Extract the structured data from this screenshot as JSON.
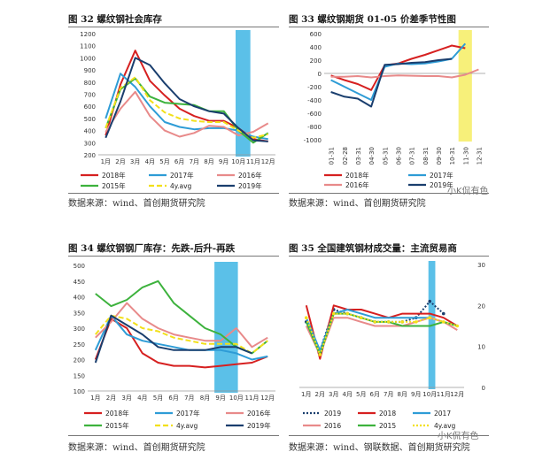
{
  "panels": {
    "p32": {
      "title": "图 32 螺纹钢社会库存",
      "source": "数据来源：wind、首创期货研究院"
    },
    "p33": {
      "title": "图 33 螺纹钢期货 01-05 价差季节性图",
      "source": "数据来源：wind、首创期货研究院"
    },
    "p34": {
      "title": "图 34 螺纹钢钢厂库存：先跌-后升-再跌",
      "source": "数据来源：wind、首创期货研究院"
    },
    "p35": {
      "title": "图 35 全国建筑钢材成交量：主流贸易商",
      "source": "数据来源：wind、钢联数据、首创期货研究院"
    }
  },
  "watermark": "小K侃有色",
  "chart_data": [
    {
      "id": "c32",
      "type": "line",
      "x_labels": [
        "1月",
        "2月",
        "3月",
        "4月",
        "5月",
        "6月",
        "7月",
        "8月",
        "9月",
        "10月",
        "11月",
        "12月"
      ],
      "ylim": [
        200,
        1200
      ],
      "y_ticks": [
        200,
        300,
        400,
        500,
        600,
        700,
        800,
        900,
        1000,
        1100,
        1200
      ],
      "highlight": {
        "from": 9.3,
        "to": 10.3,
        "color": "#5bc0e8"
      },
      "legend": [
        "2018年",
        "2017年",
        "2016年",
        "2015年",
        "4y.avg",
        "2019年"
      ],
      "series": [
        {
          "name": "2018年",
          "color": "#d62020",
          "dash": "",
          "values": [
            360,
            780,
            1060,
            810,
            690,
            580,
            520,
            480,
            480,
            420,
            330,
            310
          ]
        },
        {
          "name": "2017年",
          "color": "#2e9cd6",
          "dash": "",
          "values": [
            500,
            870,
            760,
            600,
            470,
            430,
            410,
            420,
            420,
            400,
            350,
            330
          ]
        },
        {
          "name": "2016年",
          "color": "#e88a8a",
          "dash": "",
          "values": [
            390,
            580,
            720,
            520,
            400,
            350,
            380,
            440,
            430,
            360,
            390,
            460
          ]
        },
        {
          "name": "2015年",
          "color": "#3db23d",
          "dash": "",
          "values": [
            420,
            740,
            830,
            680,
            630,
            620,
            610,
            560,
            560,
            400,
            300,
            380
          ]
        },
        {
          "name": "4y.avg",
          "color": "#f2e01a",
          "dash": "6,3",
          "values": [
            420,
            750,
            840,
            650,
            550,
            500,
            480,
            470,
            470,
            400,
            340,
            370
          ]
        },
        {
          "name": "2019年",
          "color": "#1a3e6e",
          "dash": "",
          "values": [
            340,
            640,
            1000,
            940,
            790,
            660,
            600,
            560,
            540,
            420,
            320,
            310
          ]
        }
      ]
    },
    {
      "id": "c33",
      "type": "line",
      "x_labels": [
        "01-31",
        "02-28",
        "03-31",
        "04-30",
        "05-31",
        "06-30",
        "07-31",
        "08-31",
        "09-30",
        "10-31",
        "11-30",
        "12-31"
      ],
      "ylim": [
        -1000,
        600
      ],
      "y_ticks": [
        -1000,
        -800,
        -600,
        -400,
        -200,
        0,
        200,
        400,
        600
      ],
      "highlight": {
        "from": 10.0,
        "to": 11.0,
        "color": "#f7f07a"
      },
      "legend": [
        "2018年",
        "2017年",
        "2016年",
        "2019年"
      ],
      "series": [
        {
          "name": "2018年",
          "color": "#d62020",
          "dash": "",
          "values": [
            -30,
            -100,
            -160,
            -250,
            120,
            150,
            220,
            280,
            350,
            420,
            380,
            null
          ]
        },
        {
          "name": "2017年",
          "color": "#2e9cd6",
          "dash": "",
          "values": [
            -100,
            -200,
            -300,
            -400,
            100,
            150,
            140,
            150,
            180,
            220,
            450,
            null
          ]
        },
        {
          "name": "2016年",
          "color": "#e88a8a",
          "dash": "",
          "values": [
            -50,
            -50,
            -40,
            -60,
            -40,
            -30,
            -35,
            -40,
            -40,
            -60,
            -20,
            60
          ]
        },
        {
          "name": "2019年",
          "color": "#1a3e6e",
          "dash": "",
          "values": [
            -280,
            -350,
            -380,
            -500,
            130,
            140,
            160,
            170,
            200,
            220,
            null,
            null
          ]
        }
      ]
    },
    {
      "id": "c34",
      "type": "line",
      "x_labels": [
        "1月",
        "2月",
        "3月",
        "4月",
        "5月",
        "6月",
        "7月",
        "8月",
        "9月",
        "10月",
        "11月",
        "12月"
      ],
      "ylim": [
        100,
        500
      ],
      "y_ticks": [
        100,
        150,
        200,
        250,
        300,
        350,
        400,
        450,
        500
      ],
      "highlight": {
        "from": 8.1,
        "to": 9.6,
        "color": "#5bc0e8"
      },
      "legend": [
        "2018年",
        "2017年",
        "2016年",
        "2015年",
        "4y.avg",
        "2019年"
      ],
      "series": [
        {
          "name": "2018年",
          "color": "#d62020",
          "dash": "",
          "values": [
            200,
            330,
            300,
            220,
            190,
            180,
            180,
            175,
            180,
            185,
            190,
            210
          ]
        },
        {
          "name": "2017年",
          "color": "#2e9cd6",
          "dash": "",
          "values": [
            230,
            340,
            280,
            260,
            250,
            240,
            230,
            230,
            230,
            220,
            200,
            210
          ]
        },
        {
          "name": "2016年",
          "color": "#e88a8a",
          "dash": "",
          "values": [
            270,
            320,
            380,
            330,
            300,
            280,
            270,
            260,
            260,
            300,
            240,
            270
          ]
        },
        {
          "name": "2015年",
          "color": "#3db23d",
          "dash": "",
          "values": [
            410,
            370,
            390,
            430,
            450,
            380,
            340,
            300,
            280,
            240,
            220,
            260
          ]
        },
        {
          "name": "4y.avg",
          "color": "#f2e01a",
          "dash": "6,3",
          "values": [
            280,
            340,
            330,
            300,
            290,
            270,
            260,
            250,
            250,
            250,
            220,
            260
          ]
        },
        {
          "name": "2019年",
          "color": "#1a3e6e",
          "dash": "",
          "values": [
            190,
            340,
            310,
            280,
            240,
            230,
            230,
            230,
            240,
            240,
            220,
            null
          ]
        }
      ]
    },
    {
      "id": "c35",
      "type": "line",
      "x_labels": [
        "1月",
        "2月",
        "3月",
        "4月",
        "5月",
        "6月",
        "7月",
        "8月",
        "9月",
        "10月",
        "11月",
        "12月"
      ],
      "ylim": [
        0,
        30
      ],
      "y_ticks": [
        0,
        10,
        20,
        30
      ],
      "y_axis_side": "right",
      "highlight": {
        "from": 9.4,
        "to": 9.9,
        "color": "#5bc0e8"
      },
      "legend": [
        "2019",
        "2018",
        "2017",
        "2016",
        "2015",
        "4y.avg"
      ],
      "series": [
        {
          "name": "2019",
          "color": "#1a3e6e",
          "dash": "2,2",
          "marker": true,
          "values": [
            16,
            9,
            19,
            18,
            17,
            16,
            16,
            16,
            17,
            21,
            18,
            null
          ]
        },
        {
          "name": "2018",
          "color": "#d62020",
          "dash": "",
          "values": [
            20,
            7,
            20,
            19,
            19,
            18,
            17,
            18,
            18,
            18,
            17,
            15
          ]
        },
        {
          "name": "2017",
          "color": "#2e9cd6",
          "dash": "",
          "values": [
            17,
            9,
            18,
            19,
            18,
            17,
            17,
            17,
            17,
            17,
            16,
            15
          ]
        },
        {
          "name": "2016",
          "color": "#e88a8a",
          "dash": "",
          "values": [
            15,
            8,
            17,
            17,
            16,
            15,
            15,
            15,
            16,
            17,
            16,
            14
          ]
        },
        {
          "name": "2015",
          "color": "#3db23d",
          "dash": "",
          "values": [
            16,
            8,
            18,
            18,
            17,
            16,
            16,
            15,
            15,
            15,
            16,
            15
          ]
        },
        {
          "name": "4y.avg",
          "color": "#f2e01a",
          "dash": "2,2",
          "marker": true,
          "values": [
            17,
            8,
            18,
            18,
            17,
            16,
            16,
            16,
            16,
            17,
            16,
            15
          ]
        }
      ]
    }
  ]
}
